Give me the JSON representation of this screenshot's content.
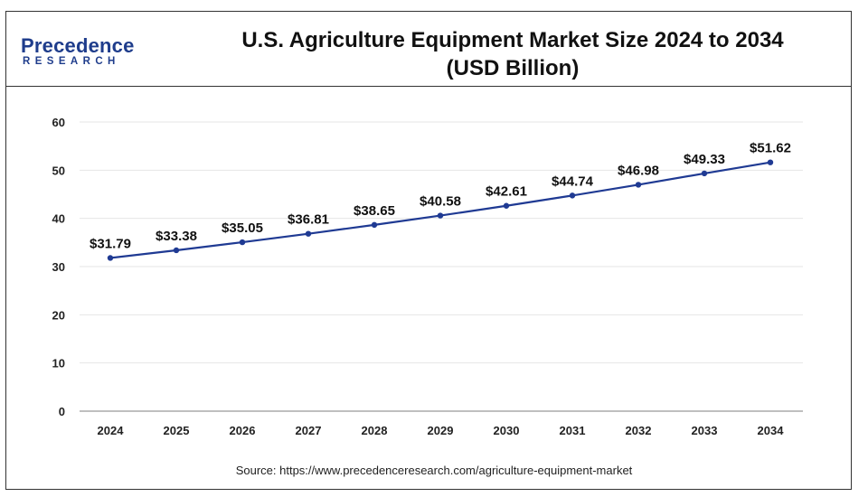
{
  "logo": {
    "word": "Precedence",
    "sub": "RESEARCH"
  },
  "header": {
    "title_line1": "U.S. Agriculture Equipment Market Size 2024 to 2034",
    "title_line2": "(USD Billion)"
  },
  "source": "Source: https://www.precedenceresearch.com/agriculture-equipment-market",
  "colors": {
    "line": "#1f3a93",
    "axis": "#999999",
    "grid": "#e6e6e6",
    "brand": "#1f3d8c"
  },
  "chart_data": {
    "type": "line",
    "title": "U.S. Agriculture Equipment Market Size 2024 to 2034 (USD Billion)",
    "categories": [
      "2024",
      "2025",
      "2026",
      "2027",
      "2028",
      "2029",
      "2030",
      "2031",
      "2032",
      "2033",
      "2034"
    ],
    "values": [
      31.79,
      33.38,
      35.05,
      36.81,
      38.65,
      40.58,
      42.61,
      44.74,
      46.98,
      49.33,
      51.62
    ],
    "data_labels": [
      "$31.79",
      "$33.38",
      "$35.05",
      "$36.81",
      "$38.65",
      "$40.58",
      "$42.61",
      "$44.74",
      "$46.98",
      "$49.33",
      "$51.62"
    ],
    "yticks": [
      0,
      10,
      20,
      30,
      40,
      50,
      60
    ],
    "ylim": [
      0,
      60
    ],
    "xlabel": "",
    "ylabel": "",
    "grid": true,
    "legend": false
  }
}
